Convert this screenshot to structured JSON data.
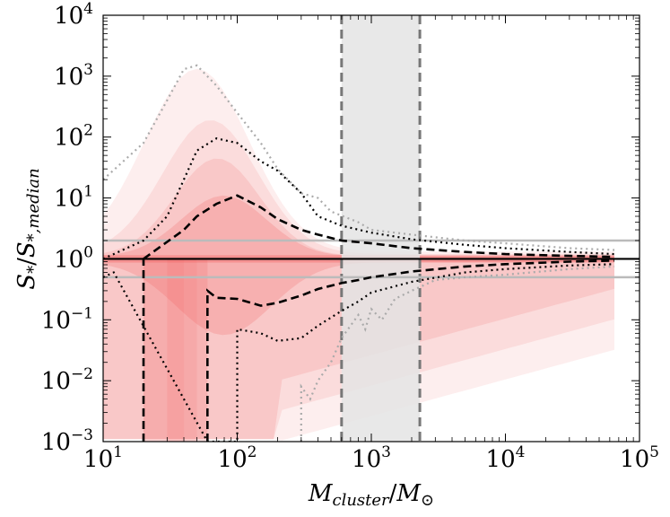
{
  "chart_data": {
    "type": "area",
    "title": "",
    "xlabel": "M_cluster / M_⊙",
    "ylabel": "S_* / S_*,median",
    "xscale": "log",
    "yscale": "log",
    "xlim": [
      10,
      100000
    ],
    "ylim": [
      0.001,
      10000
    ],
    "x_ticks": [
      {
        "base": "10",
        "exp": "1",
        "value": 10
      },
      {
        "base": "10",
        "exp": "2",
        "value": 100
      },
      {
        "base": "10",
        "exp": "3",
        "value": 1000
      },
      {
        "base": "10",
        "exp": "4",
        "value": 10000
      },
      {
        "base": "10",
        "exp": "5",
        "value": 100000
      }
    ],
    "y_ticks": [
      {
        "base": "10",
        "exp": "−3",
        "value": 0.001
      },
      {
        "base": "10",
        "exp": "−2",
        "value": 0.01
      },
      {
        "base": "10",
        "exp": "−1",
        "value": 0.1
      },
      {
        "base": "10",
        "exp": "0",
        "value": 1
      },
      {
        "base": "10",
        "exp": "1",
        "value": 10
      },
      {
        "base": "10",
        "exp": "2",
        "value": 100
      },
      {
        "base": "10",
        "exp": "3",
        "value": 1000
      },
      {
        "base": "10",
        "exp": "4",
        "value": 10000
      }
    ],
    "shaded_band_x": [
      600,
      2300
    ],
    "reference_lines_y": [
      {
        "value": 1.0,
        "style": "solid-black"
      },
      {
        "value": 2.0,
        "style": "solid-gray"
      },
      {
        "value": 0.5,
        "style": "solid-gray"
      }
    ],
    "series": [
      {
        "name": "upper-dashed",
        "style": "dashed",
        "color": "#000000",
        "points": [
          [
            20,
            1.0
          ],
          [
            30,
            1.9
          ],
          [
            40,
            3.0
          ],
          [
            50,
            5.0
          ],
          [
            70,
            8.0
          ],
          [
            100,
            11.0
          ],
          [
            150,
            7.0
          ],
          [
            200,
            4.5
          ],
          [
            300,
            3.0
          ],
          [
            400,
            2.5
          ],
          [
            600,
            2.0
          ],
          [
            1000,
            1.8
          ],
          [
            2000,
            1.5
          ],
          [
            5000,
            1.3
          ],
          [
            10000,
            1.2
          ],
          [
            30000,
            1.12
          ],
          [
            65000,
            1.08
          ]
        ]
      },
      {
        "name": "lower-dashed",
        "style": "dashed",
        "color": "#000000",
        "points": [
          [
            20,
            0.001
          ],
          [
            20,
            1.0
          ]
        ]
      },
      {
        "name": "lower-dashed-right",
        "style": "dashed",
        "color": "#000000",
        "points": [
          [
            60,
            0.001
          ],
          [
            60,
            0.3
          ],
          [
            70,
            0.23
          ],
          [
            100,
            0.22
          ],
          [
            150,
            0.17
          ],
          [
            200,
            0.19
          ],
          [
            300,
            0.25
          ],
          [
            400,
            0.32
          ],
          [
            600,
            0.4
          ],
          [
            800,
            0.45
          ],
          [
            1000,
            0.5
          ],
          [
            2000,
            0.62
          ],
          [
            5000,
            0.75
          ],
          [
            10000,
            0.82
          ],
          [
            30000,
            0.9
          ],
          [
            65000,
            0.94
          ]
        ]
      },
      {
        "name": "upper-dotted",
        "style": "dotted",
        "color": "#000000",
        "points": [
          [
            10,
            1.0
          ],
          [
            20,
            2.0
          ],
          [
            30,
            5.0
          ],
          [
            40,
            20.0
          ],
          [
            50,
            60.0
          ],
          [
            70,
            95.0
          ],
          [
            100,
            80.0
          ],
          [
            150,
            40.0
          ],
          [
            200,
            28.0
          ],
          [
            300,
            12.0
          ],
          [
            400,
            5.0
          ],
          [
            600,
            3.5
          ],
          [
            1000,
            2.7
          ],
          [
            2000,
            2.1
          ],
          [
            5000,
            1.7
          ],
          [
            10000,
            1.5
          ],
          [
            30000,
            1.3
          ],
          [
            65000,
            1.2
          ]
        ]
      },
      {
        "name": "lower-dotted",
        "style": "dotted",
        "color": "#000000",
        "points": [
          [
            10,
            0.5
          ],
          [
            12,
            0.6
          ],
          [
            60,
            0.001
          ],
          [
            100,
            0.001
          ],
          [
            100,
            0.07
          ],
          [
            150,
            0.06
          ],
          [
            200,
            0.045
          ],
          [
            300,
            0.05
          ],
          [
            400,
            0.08
          ],
          [
            600,
            0.14
          ],
          [
            800,
            0.2
          ],
          [
            1000,
            0.28
          ],
          [
            2000,
            0.42
          ],
          [
            5000,
            0.6
          ],
          [
            10000,
            0.68
          ],
          [
            30000,
            0.78
          ],
          [
            65000,
            0.82
          ]
        ]
      },
      {
        "name": "outer-upper-dotted",
        "style": "dotted",
        "color": "#aaaaaa",
        "points": [
          [
            10,
            20.0
          ],
          [
            20,
            80.0
          ],
          [
            30,
            400.0
          ],
          [
            40,
            1300.0
          ],
          [
            50,
            1500.0
          ],
          [
            70,
            700.0
          ],
          [
            100,
            250.0
          ],
          [
            150,
            80.0
          ],
          [
            200,
            30.0
          ],
          [
            300,
            12.0
          ],
          [
            400,
            10.0
          ],
          [
            500,
            6.0
          ],
          [
            800,
            4.0
          ],
          [
            1000,
            3.0
          ],
          [
            2000,
            2.5
          ],
          [
            5000,
            2.0
          ],
          [
            10000,
            1.8
          ],
          [
            30000,
            1.5
          ],
          [
            65000,
            1.4
          ]
        ]
      },
      {
        "name": "outer-lower-dotted",
        "style": "dotted",
        "color": "#aaaaaa",
        "points": [
          [
            300,
            0.001
          ],
          [
            300,
            0.008
          ],
          [
            350,
            0.005
          ],
          [
            400,
            0.01
          ],
          [
            500,
            0.02
          ],
          [
            600,
            0.05
          ],
          [
            700,
            0.08
          ],
          [
            800,
            0.12
          ],
          [
            900,
            0.07
          ],
          [
            1000,
            0.15
          ],
          [
            1200,
            0.1
          ],
          [
            1500,
            0.22
          ],
          [
            2000,
            0.3
          ],
          [
            3000,
            0.45
          ],
          [
            5000,
            0.5
          ],
          [
            10000,
            0.55
          ],
          [
            30000,
            0.68
          ],
          [
            65000,
            0.75
          ]
        ]
      }
    ]
  },
  "colors": {
    "density": "#f05a5a",
    "band": "#e4e4e4",
    "band_edge": "#777777",
    "ref_gray": "#bbbbbb",
    "outer_dotted": "#aaaaaa"
  }
}
